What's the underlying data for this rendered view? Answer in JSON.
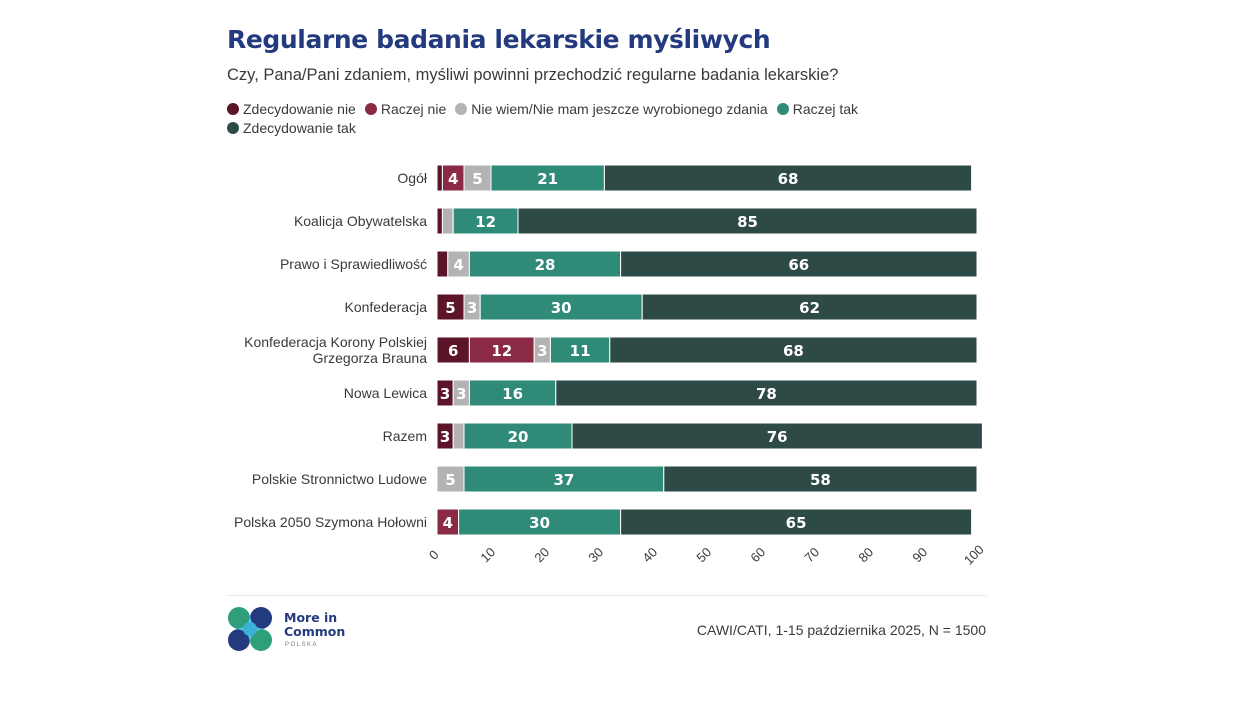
{
  "title": "Regularne badania lekarskie myśliwych",
  "subtitle": "Czy, Pana/Pani zdaniem, myśliwi powinni przechodzić regularne badania lekarskie?",
  "source": "CAWI/CATI, 1-15 października 2025, N = 1500",
  "logo": {
    "line1": "More in",
    "line2": "Common",
    "sub": "POLSKA"
  },
  "colors": {
    "series": [
      "#5c1428",
      "#8b2a45",
      "#b3b3b3",
      "#2f8a78",
      "#2e4a46"
    ],
    "title": "#243a7e"
  },
  "chart_data": {
    "type": "bar",
    "orientation": "horizontal",
    "stacked": true,
    "xlim": [
      0,
      100
    ],
    "x_ticks": [
      "0",
      "10",
      "20",
      "30",
      "40",
      "50",
      "60",
      "70",
      "80",
      "90",
      "100"
    ],
    "legend_position": "top",
    "categories": [
      "Ogół",
      "Koalicja Obywatelska",
      "Prawo i Sprawiedliwość",
      "Konfederacja",
      "Konfederacja Korony Polskiej Grzegorza Brauna",
      "Nowa Lewica",
      "Razem",
      "Polskie Stronnictwo Ludowe",
      "Polska 2050 Szymona Hołowni"
    ],
    "series": [
      {
        "name": "Zdecydowanie nie",
        "values": [
          1,
          1,
          2,
          5,
          6,
          3,
          3,
          0,
          0
        ]
      },
      {
        "name": "Raczej nie",
        "values": [
          4,
          0,
          0,
          0,
          12,
          0,
          0,
          0,
          4
        ]
      },
      {
        "name": "Nie wiem/Nie mam jeszcze wyrobionego zdania",
        "values": [
          5,
          2,
          4,
          3,
          3,
          3,
          2,
          5,
          0
        ]
      },
      {
        "name": "Raczej tak",
        "values": [
          21,
          12,
          28,
          30,
          11,
          16,
          20,
          37,
          30
        ]
      },
      {
        "name": "Zdecydowanie tak",
        "values": [
          68,
          85,
          66,
          62,
          68,
          78,
          76,
          58,
          65
        ]
      }
    ],
    "labels": [
      [
        "",
        "4",
        "5",
        "21",
        "68"
      ],
      [
        "",
        "",
        "",
        "12",
        "85"
      ],
      [
        "",
        "",
        "4",
        "28",
        "66"
      ],
      [
        "5",
        "",
        "3",
        "30",
        "62"
      ],
      [
        "6",
        "12",
        "3",
        "11",
        "68"
      ],
      [
        "3",
        "",
        "3",
        "16",
        "78"
      ],
      [
        "3",
        "",
        "",
        "20",
        "76"
      ],
      [
        "",
        "",
        "5",
        "37",
        "58"
      ],
      [
        "",
        "4",
        "",
        "30",
        "65"
      ]
    ]
  }
}
